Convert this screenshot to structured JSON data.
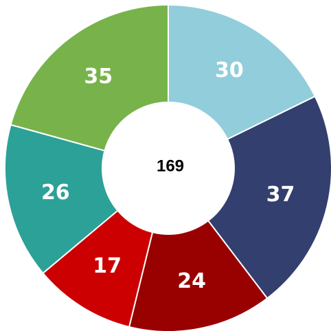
{
  "chart_data": {
    "type": "donut",
    "values": [
      30,
      37,
      24,
      17,
      26,
      35
    ],
    "colors": [
      "#92cddc",
      "#333f6e",
      "#990000",
      "#cc0000",
      "#2ca198",
      "#77b34a"
    ],
    "total": 169
  }
}
